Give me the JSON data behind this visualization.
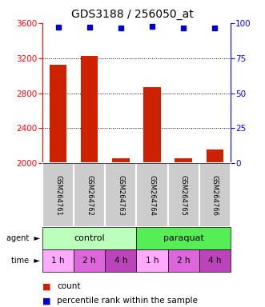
{
  "title": "GDS3188 / 256050_at",
  "samples": [
    "GSM264761",
    "GSM264762",
    "GSM264763",
    "GSM264764",
    "GSM264765",
    "GSM264766"
  ],
  "counts": [
    3130,
    3230,
    2060,
    2870,
    2060,
    2160
  ],
  "percentiles": [
    97.5,
    97.5,
    96.5,
    97.8,
    96.5,
    96.8
  ],
  "bar_color": "#cc2200",
  "dot_color": "#0000cc",
  "ylim_left": [
    2000,
    3600
  ],
  "ylim_right": [
    0,
    100
  ],
  "yticks_left": [
    2000,
    2400,
    2800,
    3200,
    3600
  ],
  "yticks_right": [
    0,
    25,
    50,
    75,
    100
  ],
  "agent_control_color": "#bbffbb",
  "agent_paraquat_color": "#55ee55",
  "time_colors": [
    "#ffaaff",
    "#dd66dd",
    "#bb44bb",
    "#ffaaff",
    "#dd66dd",
    "#bb44bb"
  ],
  "time_labels": [
    "1 h",
    "2 h",
    "4 h",
    "1 h",
    "2 h",
    "4 h"
  ],
  "gsm_bg_color": "#cccccc",
  "title_fontsize": 10,
  "tick_fontsize": 7.5,
  "label_fontsize": 8,
  "gsm_fontsize": 6,
  "legend_fontsize": 7.5
}
